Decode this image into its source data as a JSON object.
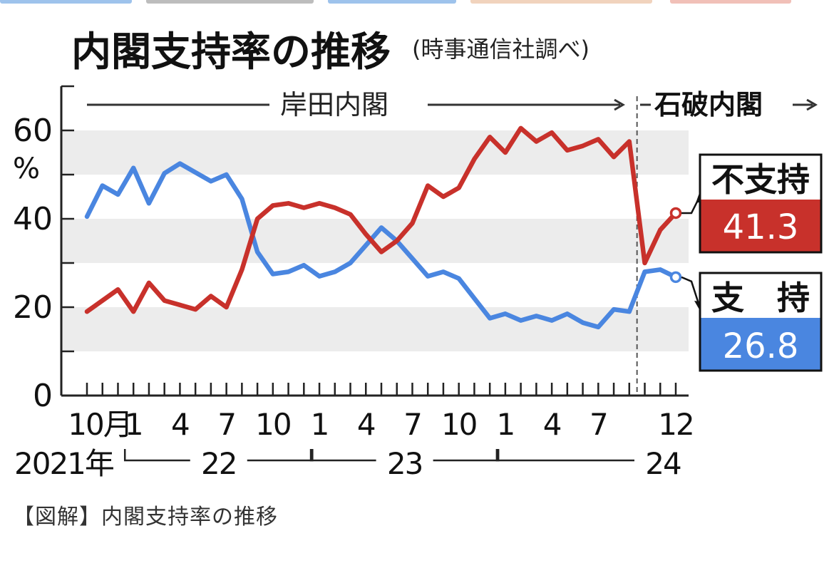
{
  "title": "内閣支持率の推移",
  "subtitle": "(時事通信社調べ)",
  "caption": "【図解】内閣支持率の推移",
  "periods": {
    "kishida": "岸田内閣",
    "ishiba": "石破内閣"
  },
  "legend": {
    "disapprove": {
      "label": "不支持",
      "latest": "41.3"
    },
    "approve": {
      "label": "支　持",
      "latest": "26.8"
    }
  },
  "colors": {
    "disapprove": "#c8312b",
    "approve": "#4a86e0",
    "band": "#ececec",
    "axis": "#222222"
  },
  "chart_data": {
    "type": "line",
    "ylim": [
      0,
      70
    ],
    "y_unit": "%",
    "yticks": [
      0,
      20,
      40,
      60
    ],
    "grid_bands": [
      [
        10,
        20
      ],
      [
        30,
        40
      ],
      [
        50,
        60
      ]
    ],
    "xlim": [
      "2021-10",
      "2024-12"
    ],
    "x_tick_labels": [
      {
        "x": "2021-10",
        "label": "10月"
      },
      {
        "x": "2022-01",
        "label": "1"
      },
      {
        "x": "2022-04",
        "label": "4"
      },
      {
        "x": "2022-07",
        "label": "7"
      },
      {
        "x": "2022-10",
        "label": "10"
      },
      {
        "x": "2023-01",
        "label": "1"
      },
      {
        "x": "2023-04",
        "label": "4"
      },
      {
        "x": "2023-07",
        "label": "7"
      },
      {
        "x": "2023-10",
        "label": "10"
      },
      {
        "x": "2024-01",
        "label": "1"
      },
      {
        "x": "2024-04",
        "label": "4"
      },
      {
        "x": "2024-07",
        "label": "7"
      },
      {
        "x": "2024-12",
        "label": "12"
      }
    ],
    "year_labels": [
      {
        "label": "2021年",
        "x": "2021-10"
      },
      {
        "label": "22",
        "from": "2022-01",
        "to": "2022-12"
      },
      {
        "label": "23",
        "from": "2023-01",
        "to": "2023-12"
      },
      {
        "label": "24",
        "from": "2024-01",
        "to": "2024-12"
      }
    ],
    "cabinet_change": "2024-10",
    "x": [
      "2021-10",
      "2021-11",
      "2021-12",
      "2022-01",
      "2022-02",
      "2022-03",
      "2022-04",
      "2022-05",
      "2022-06",
      "2022-07",
      "2022-08",
      "2022-09",
      "2022-10",
      "2022-11",
      "2022-12",
      "2023-01",
      "2023-02",
      "2023-03",
      "2023-04",
      "2023-05",
      "2023-06",
      "2023-07",
      "2023-08",
      "2023-09",
      "2023-10",
      "2023-11",
      "2023-12",
      "2024-01",
      "2024-02",
      "2024-03",
      "2024-04",
      "2024-05",
      "2024-06",
      "2024-07",
      "2024-08",
      "2024-09",
      "2024-10",
      "2024-11",
      "2024-12"
    ],
    "series": [
      {
        "name": "支持",
        "values": [
          40.5,
          47.5,
          45.5,
          51.5,
          43.5,
          50.3,
          52.5,
          50.5,
          48.5,
          50.0,
          44.5,
          32.5,
          27.5,
          28.0,
          29.5,
          27.0,
          28.0,
          30.0,
          34.0,
          38.0,
          35.0,
          31.0,
          27.0,
          28.0,
          26.5,
          22.0,
          17.5,
          18.5,
          17.0,
          18.0,
          17.0,
          18.5,
          16.5,
          15.5,
          19.5,
          19.0,
          28.0,
          28.5,
          26.8
        ]
      },
      {
        "name": "不支持",
        "values": [
          19.0,
          21.5,
          24.0,
          19.0,
          25.5,
          21.5,
          20.5,
          19.5,
          22.5,
          20.0,
          28.5,
          40.0,
          43.0,
          43.5,
          42.5,
          43.5,
          42.5,
          41.0,
          36.5,
          32.5,
          35.0,
          39.0,
          47.5,
          45.0,
          47.0,
          53.5,
          58.5,
          55.0,
          60.5,
          57.5,
          59.5,
          55.5,
          56.5,
          58.0,
          54.0,
          57.5,
          30.0,
          37.5,
          41.3
        ]
      }
    ]
  }
}
